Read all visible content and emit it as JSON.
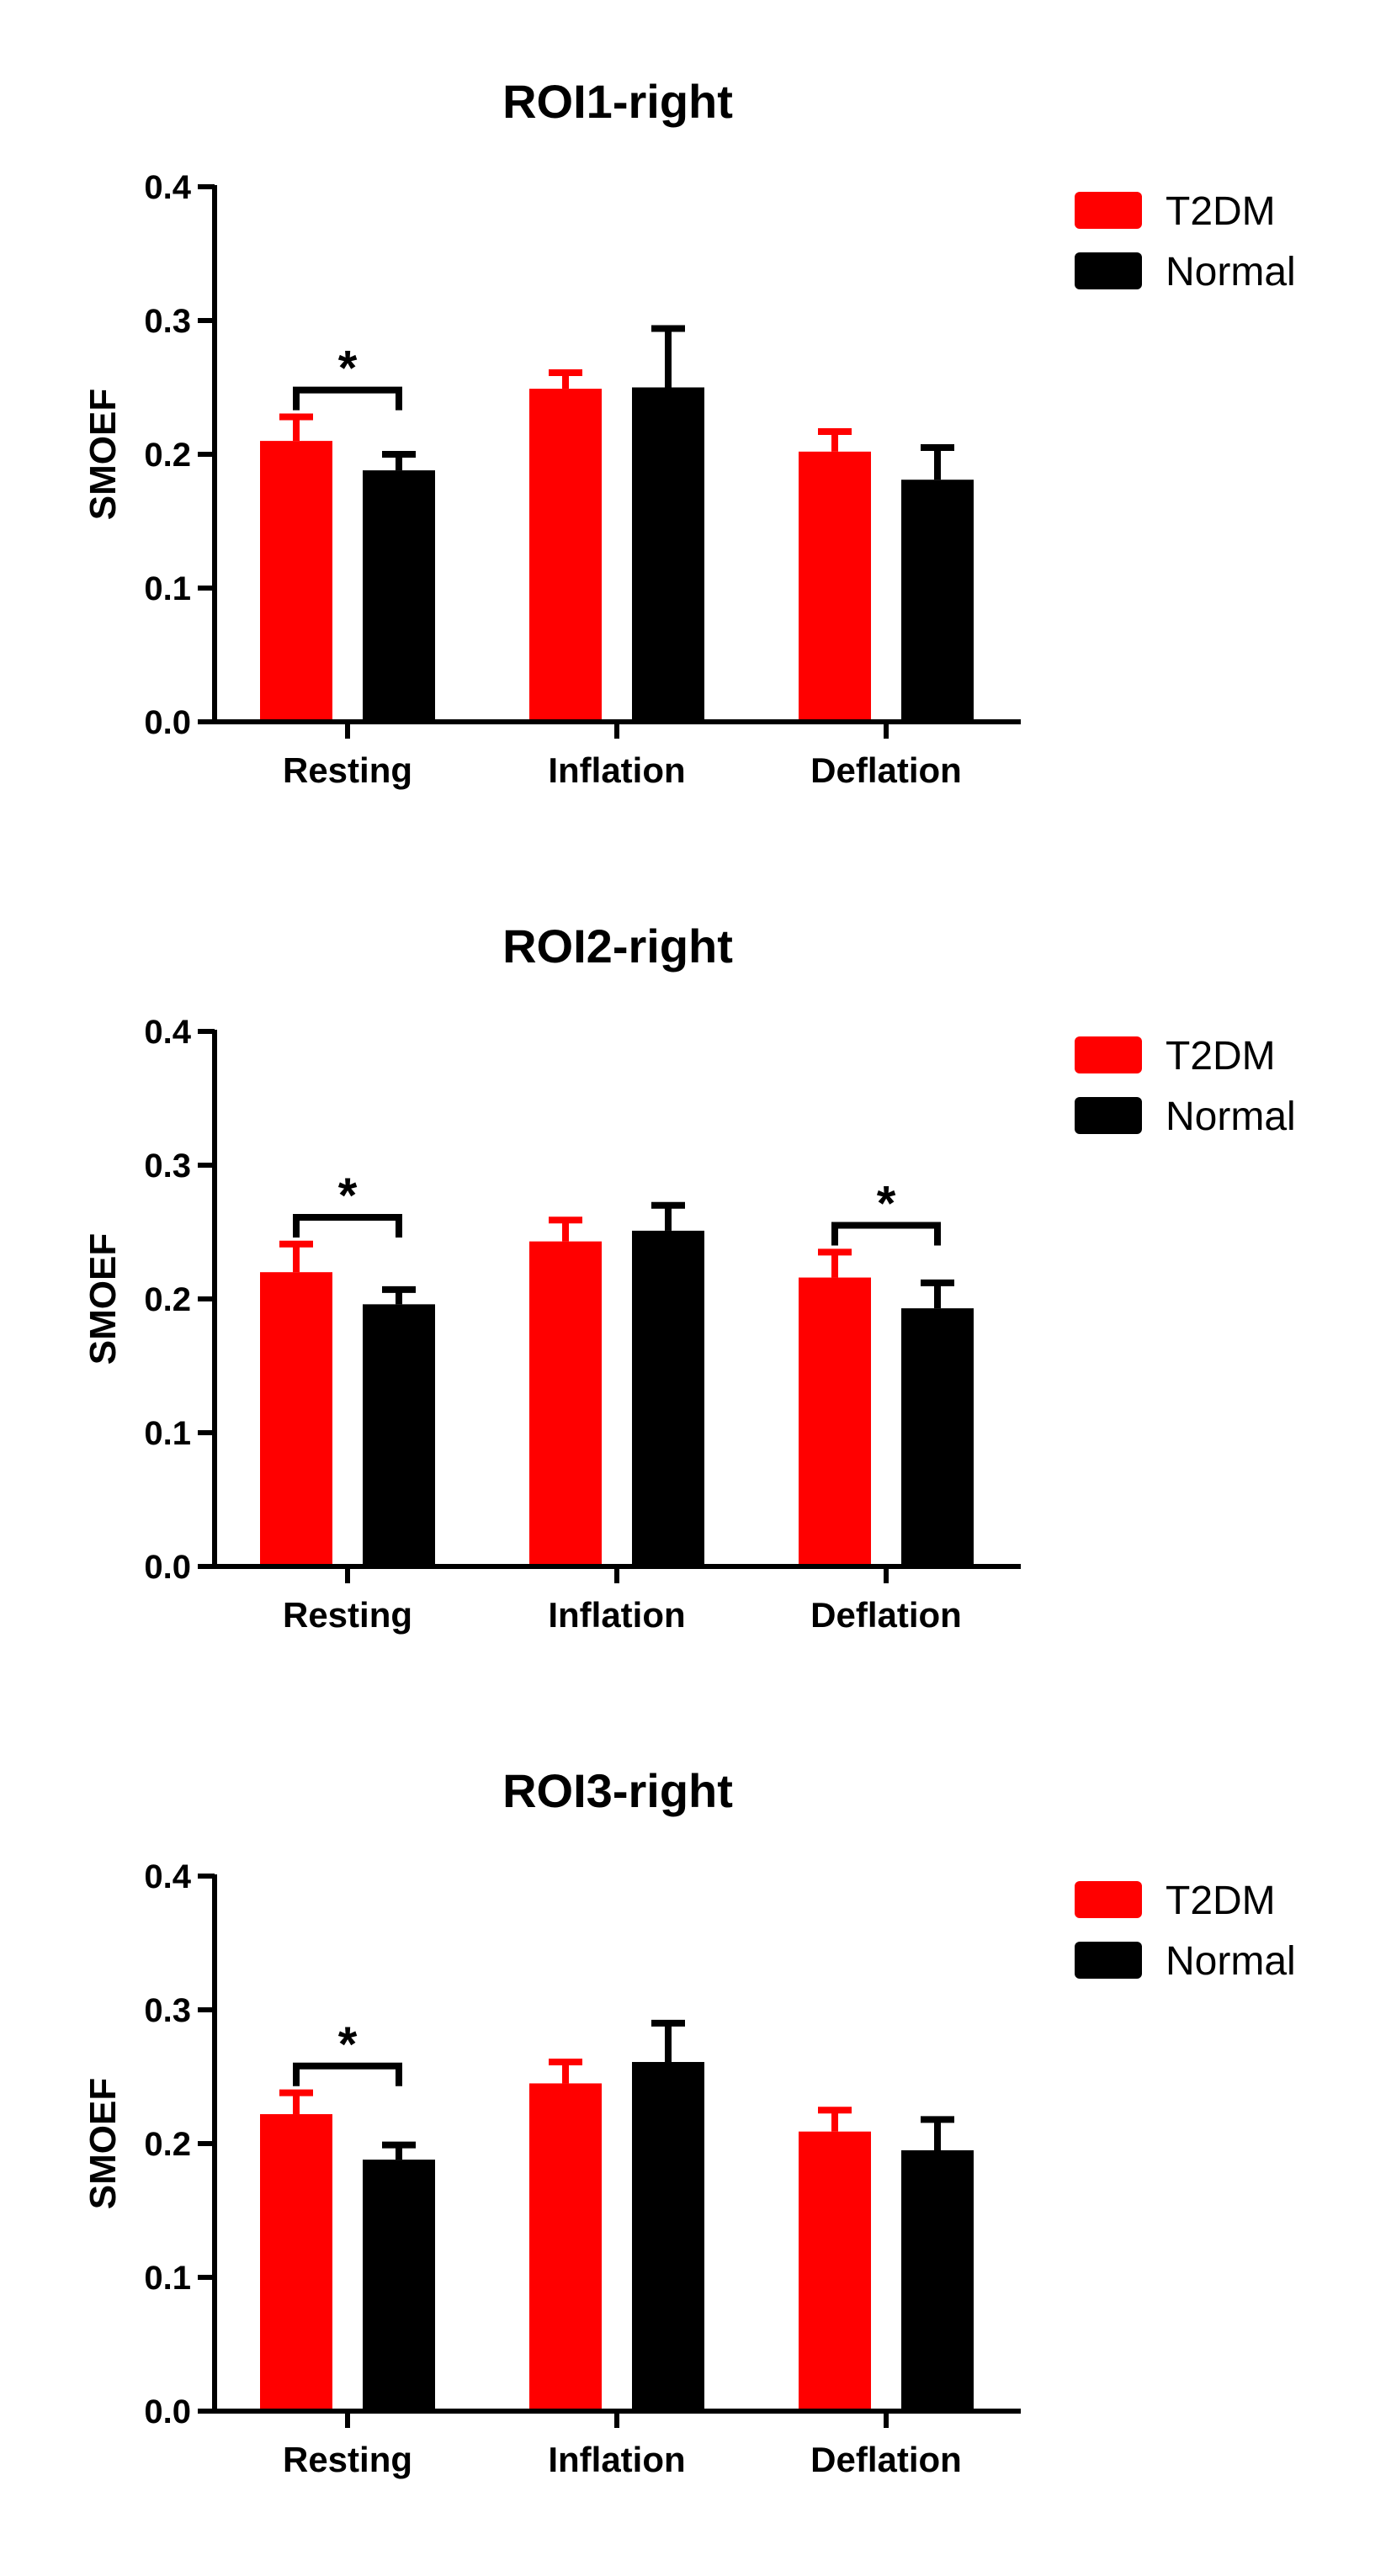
{
  "chart_data": [
    {
      "type": "bar",
      "title": "ROI1-right",
      "xlabel": "",
      "ylabel": "SMOEF",
      "ylim": [
        0,
        0.4
      ],
      "yticks": [
        "0.0",
        "0.1",
        "0.2",
        "0.3",
        "0.4"
      ],
      "categories": [
        "Resting",
        "Inflation",
        "Deflation"
      ],
      "series": [
        {
          "name": "T2DM",
          "color": "#ff0000",
          "values": [
            0.21,
            0.249,
            0.202
          ],
          "errors": [
            0.018,
            0.012,
            0.015
          ]
        },
        {
          "name": "Normal",
          "color": "#000000",
          "values": [
            0.188,
            0.25,
            0.181
          ],
          "errors": [
            0.012,
            0.044,
            0.024
          ]
        }
      ],
      "significance": [
        {
          "category": "Resting",
          "label": "*"
        }
      ],
      "legend": "top-right"
    },
    {
      "type": "bar",
      "title": "ROI2-right",
      "xlabel": "",
      "ylabel": "SMOEF",
      "ylim": [
        0,
        0.4
      ],
      "yticks": [
        "0.0",
        "0.1",
        "0.2",
        "0.3",
        "0.4"
      ],
      "categories": [
        "Resting",
        "Inflation",
        "Deflation"
      ],
      "series": [
        {
          "name": "T2DM",
          "color": "#ff0000",
          "values": [
            0.22,
            0.243,
            0.216
          ],
          "errors": [
            0.021,
            0.016,
            0.019
          ]
        },
        {
          "name": "Normal",
          "color": "#000000",
          "values": [
            0.196,
            0.251,
            0.193
          ],
          "errors": [
            0.011,
            0.019,
            0.019
          ]
        }
      ],
      "significance": [
        {
          "category": "Resting",
          "label": "*"
        },
        {
          "category": "Deflation",
          "label": "*"
        }
      ],
      "legend": "top-right"
    },
    {
      "type": "bar",
      "title": "ROI3-right",
      "xlabel": "",
      "ylabel": "SMOEF",
      "ylim": [
        0,
        0.4
      ],
      "yticks": [
        "0.0",
        "0.1",
        "0.2",
        "0.3",
        "0.4"
      ],
      "categories": [
        "Resting",
        "Inflation",
        "Deflation"
      ],
      "series": [
        {
          "name": "T2DM",
          "color": "#ff0000",
          "values": [
            0.222,
            0.245,
            0.209
          ],
          "errors": [
            0.016,
            0.016,
            0.016
          ]
        },
        {
          "name": "Normal",
          "color": "#000000",
          "values": [
            0.188,
            0.261,
            0.195
          ],
          "errors": [
            0.011,
            0.029,
            0.023
          ]
        }
      ],
      "significance": [
        {
          "category": "Resting",
          "label": "*"
        }
      ],
      "legend": "top-right"
    }
  ]
}
